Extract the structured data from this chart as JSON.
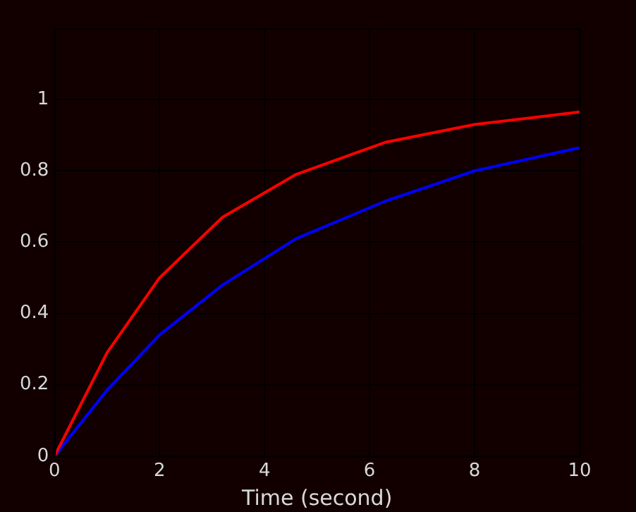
{
  "chart_data": {
    "type": "line",
    "xlabel": "Time (second)",
    "xlim": [
      0,
      10
    ],
    "xticks": [
      0,
      2,
      4,
      6,
      8,
      10
    ],
    "ylim": [
      0,
      1.2
    ],
    "yticks": [
      0,
      0.2,
      0.4,
      0.6,
      0.8,
      1
    ],
    "grid": true,
    "line_style": "solid",
    "marker": "none",
    "series": [
      {
        "color": "#ff0000",
        "x": [
          0,
          1,
          2,
          3.2,
          4.6,
          6.3,
          8,
          10
        ],
        "values": [
          0,
          0.29,
          0.5,
          0.67,
          0.79,
          0.88,
          0.93,
          0.965
        ]
      },
      {
        "color": "#0000ff",
        "x": [
          0,
          1,
          2,
          3.2,
          4.6,
          6.3,
          8,
          10
        ],
        "values": [
          0,
          0.185,
          0.34,
          0.48,
          0.61,
          0.715,
          0.8,
          0.865
        ]
      }
    ]
  }
}
